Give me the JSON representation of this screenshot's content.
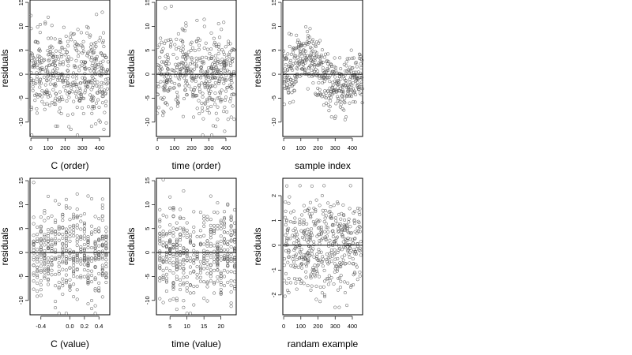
{
  "chart_data": [
    {
      "type": "scatter",
      "xlabel": "C (order)",
      "ylabel": "residuals",
      "xlim": [
        -5,
        460
      ],
      "ylim": [
        -13,
        15.5
      ],
      "xticks": [
        0,
        100,
        200,
        300,
        400
      ],
      "yticks": [
        -10,
        -5,
        0,
        5,
        10,
        15
      ],
      "hline": 0,
      "points": {
        "n": 460,
        "pattern": "wide",
        "sd": 5.0
      }
    },
    {
      "type": "scatter",
      "xlabel": "time (order)",
      "ylabel": "residuals",
      "xlim": [
        -5,
        460
      ],
      "ylim": [
        -13,
        15.5
      ],
      "xticks": [
        0,
        100,
        200,
        300,
        400
      ],
      "yticks": [
        -10,
        -5,
        0,
        5,
        10,
        15
      ],
      "hline": 0,
      "points": {
        "n": 460,
        "pattern": "wide",
        "sd": 5.0
      }
    },
    {
      "type": "scatter",
      "xlabel": "sample index",
      "ylabel": "residuals",
      "xlim": [
        -5,
        460
      ],
      "ylim": [
        -13,
        15.5
      ],
      "xticks": [
        0,
        100,
        200,
        300,
        400
      ],
      "yticks": [
        -10,
        -5,
        0,
        5,
        10,
        15
      ],
      "hline": 0,
      "points": {
        "n": 460,
        "pattern": "wavy",
        "sd": 3.0
      }
    },
    {
      "type": "scatter",
      "xlabel": "C (value)",
      "ylabel": "residuals",
      "xlim": [
        -0.55,
        0.55
      ],
      "ylim": [
        -13,
        15.5
      ],
      "xticks": [
        -0.4,
        0.0,
        0.2,
        0.4
      ],
      "xticklabels": [
        "-0.4",
        "0.0",
        "0.2",
        "0.4"
      ],
      "yticks": [
        -10,
        -5,
        0,
        5,
        10,
        15
      ],
      "hline": 0,
      "points": {
        "n": 460,
        "pattern": "discrete",
        "xvals": [
          -0.5,
          -0.45,
          -0.4,
          -0.35,
          -0.3,
          -0.25,
          -0.2,
          -0.15,
          -0.1,
          -0.05,
          0.0,
          0.05,
          0.1,
          0.15,
          0.2,
          0.25,
          0.3,
          0.35,
          0.4,
          0.45,
          0.5
        ],
        "sd": 5.0
      }
    },
    {
      "type": "scatter",
      "xlabel": "time (value)",
      "ylabel": "residuals",
      "xlim": [
        1,
        24.5
      ],
      "ylim": [
        -13,
        15.5
      ],
      "xticks": [
        5,
        10,
        15,
        20
      ],
      "yticks": [
        -10,
        -5,
        0,
        5,
        10,
        15
      ],
      "hline": 0,
      "points": {
        "n": 460,
        "pattern": "discrete",
        "xvals": [
          2,
          3,
          4,
          5,
          6,
          7,
          8,
          9,
          10,
          11,
          12,
          13,
          14,
          15,
          16,
          17,
          18,
          19,
          20,
          21,
          22,
          23,
          24
        ],
        "sd": 5.0
      }
    },
    {
      "type": "scatter",
      "xlabel": "randam example",
      "ylabel": "residuals",
      "xlim": [
        -5,
        460
      ],
      "ylim": [
        -2.8,
        2.7
      ],
      "xticks": [
        0,
        100,
        200,
        300,
        400
      ],
      "yticks": [
        -2,
        -1,
        0,
        1,
        2
      ],
      "hline": 0,
      "points": {
        "n": 460,
        "pattern": "uniform",
        "sd": 1.0
      }
    }
  ],
  "colors": {
    "point": "#555555",
    "axis": "#000000",
    "background": "#ffffff"
  }
}
